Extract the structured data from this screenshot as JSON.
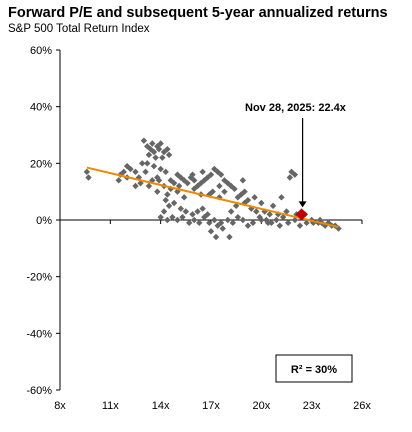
{
  "chart_data": {
    "type": "scatter",
    "title": "Forward P/E and subsequent 5-year annualized returns",
    "subtitle": "S&P 500 Total Return Index",
    "xlabel": "",
    "ylabel": "",
    "xlim": [
      8,
      26
    ],
    "ylim": [
      -60,
      60
    ],
    "x_ticks": [
      8,
      11,
      14,
      17,
      20,
      23,
      26
    ],
    "x_tick_labels": [
      "8x",
      "11x",
      "14x",
      "17x",
      "20x",
      "23x",
      "26x"
    ],
    "y_ticks": [
      -60,
      -40,
      -20,
      0,
      20,
      40,
      60
    ],
    "y_tick_labels": [
      "-60%",
      "-40%",
      "-20%",
      "0%",
      "20%",
      "40%",
      "60%"
    ],
    "grid": false,
    "colors": {
      "points": "#666666",
      "trend": "#ED8B00",
      "current": "#C00000"
    },
    "points": [
      [
        9.6,
        17
      ],
      [
        9.7,
        15
      ],
      [
        11.5,
        14
      ],
      [
        11.6,
        16
      ],
      [
        12.0,
        19
      ],
      [
        12.2,
        18
      ],
      [
        12.5,
        17
      ],
      [
        12.7,
        15
      ],
      [
        12.9,
        20
      ],
      [
        12.5,
        12
      ],
      [
        13.0,
        28
      ],
      [
        13.2,
        26
      ],
      [
        13.4,
        25
      ],
      [
        13.5,
        27
      ],
      [
        13.3,
        23
      ],
      [
        13.6,
        24
      ],
      [
        13.8,
        26
      ],
      [
        13.7,
        22
      ],
      [
        13.9,
        25
      ],
      [
        14.0,
        27
      ],
      [
        14.2,
        24
      ],
      [
        14.4,
        25
      ],
      [
        14.1,
        22
      ],
      [
        14.5,
        23
      ],
      [
        13.2,
        20
      ],
      [
        13.6,
        19
      ],
      [
        13.1,
        17
      ],
      [
        13.5,
        14
      ],
      [
        13.8,
        15
      ],
      [
        14.0,
        18
      ],
      [
        14.3,
        17
      ],
      [
        14.6,
        14
      ],
      [
        14.8,
        13
      ],
      [
        15.0,
        16
      ],
      [
        15.2,
        15
      ],
      [
        15.4,
        14
      ],
      [
        15.6,
        13
      ],
      [
        15.8,
        15
      ],
      [
        16.0,
        14
      ],
      [
        16.2,
        12
      ],
      [
        16.4,
        13
      ],
      [
        16.6,
        14
      ],
      [
        16.8,
        15
      ],
      [
        17.0,
        16
      ],
      [
        17.2,
        18
      ],
      [
        17.4,
        17
      ],
      [
        17.6,
        16
      ],
      [
        17.8,
        14
      ],
      [
        18.0,
        13
      ],
      [
        18.2,
        12
      ],
      [
        18.4,
        11
      ],
      [
        17.1,
        10
      ],
      [
        16.9,
        9
      ],
      [
        17.5,
        8
      ],
      [
        15.4,
        8
      ],
      [
        15.0,
        10
      ],
      [
        14.6,
        11
      ],
      [
        14.4,
        9
      ],
      [
        16.0,
        11
      ],
      [
        16.4,
        9
      ],
      [
        17.8,
        10
      ],
      [
        18.6,
        8
      ],
      [
        18.8,
        9
      ],
      [
        19.2,
        7
      ],
      [
        19.6,
        8
      ],
      [
        20.0,
        6
      ],
      [
        14.3,
        7
      ],
      [
        14.5,
        5
      ],
      [
        14.8,
        6
      ],
      [
        15.2,
        4
      ],
      [
        15.5,
        3
      ],
      [
        15.9,
        2
      ],
      [
        16.2,
        3
      ],
      [
        16.5,
        4
      ],
      [
        16.8,
        2
      ],
      [
        14.2,
        3
      ],
      [
        14.0,
        1
      ],
      [
        14.4,
        0
      ],
      [
        14.7,
        1
      ],
      [
        15.0,
        0
      ],
      [
        15.3,
        1
      ],
      [
        15.7,
        -1
      ],
      [
        16.0,
        0
      ],
      [
        16.3,
        -1
      ],
      [
        16.6,
        1
      ],
      [
        16.9,
        -1
      ],
      [
        17.2,
        0
      ],
      [
        17.4,
        -2
      ],
      [
        17.7,
        -3
      ],
      [
        17.0,
        -4
      ],
      [
        17.6,
        -1
      ],
      [
        18.0,
        0
      ],
      [
        18.3,
        -1
      ],
      [
        18.6,
        1
      ],
      [
        18.9,
        0
      ],
      [
        19.2,
        -2
      ],
      [
        19.5,
        -1
      ],
      [
        19.9,
        1
      ],
      [
        20.3,
        0
      ],
      [
        20.6,
        -1
      ],
      [
        20.9,
        0
      ],
      [
        21.3,
        1
      ],
      [
        21.6,
        -1
      ],
      [
        22.0,
        0
      ],
      [
        22.4,
        1
      ],
      [
        22.7,
        -1
      ],
      [
        23.0,
        0
      ],
      [
        23.4,
        -1
      ],
      [
        23.8,
        -2
      ],
      [
        24.2,
        -2
      ],
      [
        24.6,
        -3
      ],
      [
        18.1,
        -6
      ],
      [
        17.3,
        -6
      ],
      [
        21.8,
        17
      ],
      [
        22.0,
        16
      ],
      [
        21.7,
        15
      ],
      [
        21.2,
        8
      ],
      [
        22.1,
        2
      ],
      [
        21.5,
        3
      ],
      [
        20.7,
        5
      ],
      [
        20.2,
        3
      ],
      [
        22.6,
        2
      ],
      [
        23.1,
        -1
      ],
      [
        23.5,
        0
      ],
      [
        19.0,
        10
      ],
      [
        19.4,
        4
      ],
      [
        18.5,
        5
      ],
      [
        18.2,
        3
      ],
      [
        13.8,
        10
      ],
      [
        13.9,
        14
      ],
      [
        14.2,
        12
      ],
      [
        15.1,
        12
      ],
      [
        15.9,
        16
      ],
      [
        16.5,
        17
      ],
      [
        17.5,
        12
      ],
      [
        18.9,
        14
      ],
      [
        19.0,
        6
      ],
      [
        19.7,
        3
      ],
      [
        20.5,
        2
      ],
      [
        21.0,
        2
      ],
      [
        20.0,
        0
      ],
      [
        20.4,
        -1
      ],
      [
        21.1,
        -2
      ],
      [
        22.3,
        -2
      ],
      [
        23.6,
        -1
      ],
      [
        24.0,
        -1
      ],
      [
        24.4,
        -2
      ],
      [
        12.8,
        13
      ],
      [
        13.3,
        12
      ],
      [
        12.0,
        15
      ],
      [
        11.8,
        17
      ]
    ],
    "trend": {
      "x0": 9.6,
      "y0": 18.5,
      "x1": 24.6,
      "y1": -2.5
    },
    "current": {
      "x": 22.4,
      "y": 2,
      "label": "Nov 28, 2025: 22.4x"
    },
    "r_squared": "R² = 30%"
  }
}
